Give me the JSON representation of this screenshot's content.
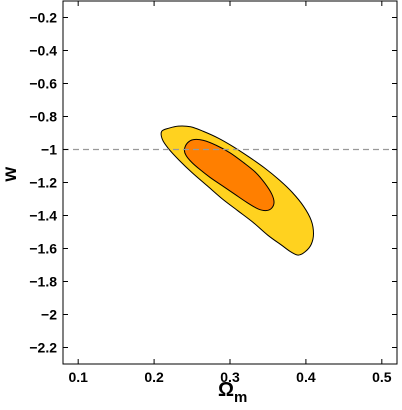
{
  "chart_data": {
    "type": "contour",
    "title": "",
    "xlabel": "Ω",
    "xlabel_subscript": "m",
    "ylabel": "w",
    "xlim": [
      0.08,
      0.52
    ],
    "ylim": [
      -2.3,
      -0.1
    ],
    "xticks": [
      0.1,
      0.2,
      0.3,
      0.4,
      0.5
    ],
    "yticks": [
      -0.2,
      -0.4,
      -0.6,
      -0.8,
      -1,
      -1.2,
      -1.4,
      -1.6,
      -1.8,
      -2,
      -2.2
    ],
    "xtick_labels": [
      "0.1",
      "0.2",
      "0.3",
      "0.4",
      "0.5"
    ],
    "ytick_labels": [
      "−0.2",
      "−0.4",
      "−0.6",
      "−0.8",
      "−1",
      "−1.2",
      "−1.4",
      "−1.6",
      "−1.8",
      "−2",
      "−2.2"
    ],
    "grid": false,
    "reference_line": {
      "y": -1,
      "style": "dashed",
      "color": "#999999"
    },
    "regions": [
      {
        "level": "outer",
        "color": "#FFD21F",
        "points": [
          [
            0.21,
            -0.89
          ],
          [
            0.22,
            -0.87
          ],
          [
            0.232,
            -0.858
          ],
          [
            0.248,
            -0.862
          ],
          [
            0.265,
            -0.89
          ],
          [
            0.285,
            -0.932
          ],
          [
            0.305,
            -0.985
          ],
          [
            0.325,
            -1.045
          ],
          [
            0.345,
            -1.11
          ],
          [
            0.365,
            -1.185
          ],
          [
            0.382,
            -1.26
          ],
          [
            0.397,
            -1.345
          ],
          [
            0.407,
            -1.43
          ],
          [
            0.41,
            -1.51
          ],
          [
            0.407,
            -1.575
          ],
          [
            0.399,
            -1.62
          ],
          [
            0.39,
            -1.64
          ],
          [
            0.38,
            -1.62
          ],
          [
            0.368,
            -1.58
          ],
          [
            0.35,
            -1.52
          ],
          [
            0.33,
            -1.44
          ],
          [
            0.31,
            -1.37
          ],
          [
            0.29,
            -1.3
          ],
          [
            0.27,
            -1.22
          ],
          [
            0.25,
            -1.14
          ],
          [
            0.233,
            -1.065
          ],
          [
            0.219,
            -0.995
          ],
          [
            0.211,
            -0.94
          ]
        ]
      },
      {
        "level": "inner",
        "color": "#FF7F00",
        "points": [
          [
            0.24,
            -1.0
          ],
          [
            0.244,
            -0.96
          ],
          [
            0.252,
            -0.94
          ],
          [
            0.265,
            -0.945
          ],
          [
            0.282,
            -0.975
          ],
          [
            0.3,
            -1.02
          ],
          [
            0.318,
            -1.08
          ],
          [
            0.334,
            -1.14
          ],
          [
            0.346,
            -1.205
          ],
          [
            0.355,
            -1.27
          ],
          [
            0.358,
            -1.32
          ],
          [
            0.355,
            -1.355
          ],
          [
            0.348,
            -1.37
          ],
          [
            0.337,
            -1.36
          ],
          [
            0.322,
            -1.32
          ],
          [
            0.306,
            -1.27
          ],
          [
            0.29,
            -1.22
          ],
          [
            0.274,
            -1.17
          ],
          [
            0.26,
            -1.12
          ],
          [
            0.249,
            -1.075
          ],
          [
            0.242,
            -1.035
          ]
        ]
      }
    ]
  }
}
